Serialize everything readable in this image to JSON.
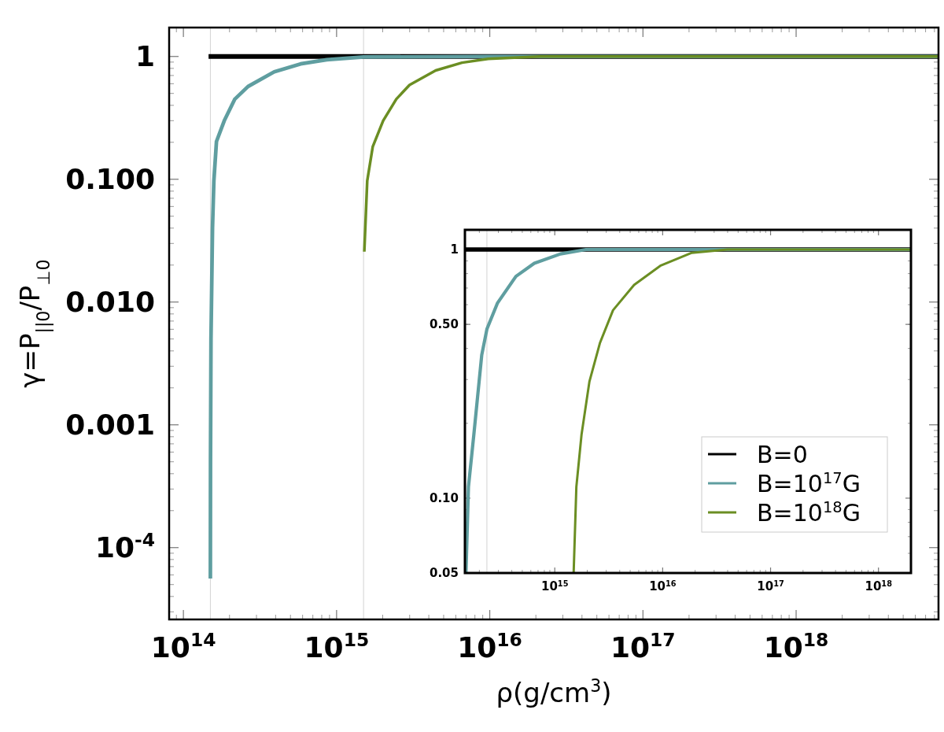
{
  "chart_data": [
    {
      "type": "line",
      "xlabel": "ρ(g/cm$^{3}$)",
      "ylabel": "γ=P$_{||0}$/P$_{⊥0}$",
      "log": "xy",
      "xlim": [
        80700000000000.0,
        8.5e+18
      ],
      "ylim": [
        2.6e-05,
        1.72
      ],
      "xticks": [
        {
          "value": 100000000000000.0,
          "label": "10$^{14}$"
        },
        {
          "value": 1000000000000000.0,
          "label": "10$^{15}$"
        },
        {
          "value": 1e+16,
          "label": "10$^{16}$"
        },
        {
          "value": 1e+17,
          "label": "10$^{17}$"
        },
        {
          "value": 1e+18,
          "label": "10$^{18}$"
        }
      ],
      "yticks": [
        1,
        {
          "value": 0.1,
          "label": "0.100"
        },
        {
          "value": 0.01,
          "label": "0.010"
        },
        0.001,
        {
          "value": 0.0001,
          "label": "10$^{-4}$"
        }
      ],
      "ref_lines": [
        {
          "axis": "x",
          "value": 150000000000000.0,
          "color": "#d3d3d3"
        },
        {
          "axis": "x",
          "value": 1500000000000000.0,
          "color": "#d3d3d3"
        }
      ],
      "series": [
        {
          "color": "#000000",
          "x": [
            146000000000000.0,
            8.5e+18
          ],
          "values": [
            1,
            1
          ]
        },
        {
          "color": "#5f9ea0",
          "x": [
            150000000000000.0,
            150300000000000.0,
            151400000000000.0,
            154900000000000.0,
            158100000000000.0,
            164400000000000.0,
            184900000000000.0,
            216800000000000.0,
            264200000000000.0,
            391700000000000.0,
            582100000000000.0,
            863000000000000.0,
            1500000000000000.0,
            1e+16,
            8.5e+18
          ],
          "values": [
            5.6e-05,
            0.0005,
            0.005,
            0.04,
            0.097,
            0.203,
            0.3,
            0.45,
            0.57,
            0.75,
            0.87,
            0.94,
            0.99,
            1,
            1
          ]
        },
        {
          "color": "#6b8e23",
          "x": [
            1517000000000000.0,
            1585000000000000.0,
            1722000000000000.0,
            2014000000000000.0,
            2455000000000000.0,
            2992000000000000.0,
            4436000000000000.0,
            6592000000000000.0,
            9770000000000000.0,
            2.138e+16,
            8.5e+18
          ],
          "values": [
            0.0257,
            0.097,
            0.184,
            0.3,
            0.45,
            0.585,
            0.77,
            0.89,
            0.956,
            1,
            1
          ]
        }
      ]
    },
    {
      "type": "line",
      "log": "xy",
      "legend": "bottom right",
      "xlim": [
        147000000000000.0,
        2e+18
      ],
      "ylim": [
        0.05,
        1.2
      ],
      "xticks": [
        {
          "value": 1000000000000000.0,
          "label": "10$^{15}$"
        },
        {
          "value": 1e+16,
          "label": "10$^{16}$"
        },
        {
          "value": 1e+17,
          "label": "10$^{17}$"
        },
        {
          "value": 1e+18,
          "label": "10$^{18}$"
        }
      ],
      "yticks": [
        1,
        {
          "value": 0.5,
          "label": "0.50"
        },
        {
          "value": 0.1,
          "label": "0.10"
        },
        0.05
      ],
      "ref_lines": [
        {
          "axis": "x",
          "value": 235000000000000.0,
          "color": "#d3d3d3"
        }
      ],
      "series": [
        {
          "name": "B=0",
          "color": "#000000",
          "x": [
            147000000000000.0,
            2e+18
          ],
          "values": [
            1,
            1
          ]
        },
        {
          "name": "B=10$^{17}$G",
          "color": "#5f9ea0",
          "x": [
            150300000000000.0,
            158500000000000.0,
            177800000000000.0,
            210400000000000.0,
            235500000000000.0,
            295100000000000.0,
            436500000000000.0,
            645700000000000.0,
            1130000000000000.0,
            1950000000000000.0,
            1e+16,
            2e+18
          ],
          "values": [
            0.05,
            0.111,
            0.18,
            0.376,
            0.48,
            0.61,
            0.78,
            0.88,
            0.96,
            1,
            1,
            1
          ]
        },
        {
          "name": "B=10$^{18}$G",
          "color": "#6b8e23",
          "x": [
            1496000000000000.0,
            1585000000000000.0,
            1770000000000000.0,
            2094000000000000.0,
            2618000000000000.0,
            3467000000000000.0,
            5433000000000000.0,
            9500000000000000.0,
            1.862e+16,
            3.98e+16,
            2e+18
          ],
          "values": [
            0.05,
            0.111,
            0.18,
            0.294,
            0.42,
            0.57,
            0.72,
            0.86,
            0.97,
            1,
            1
          ]
        }
      ]
    }
  ]
}
